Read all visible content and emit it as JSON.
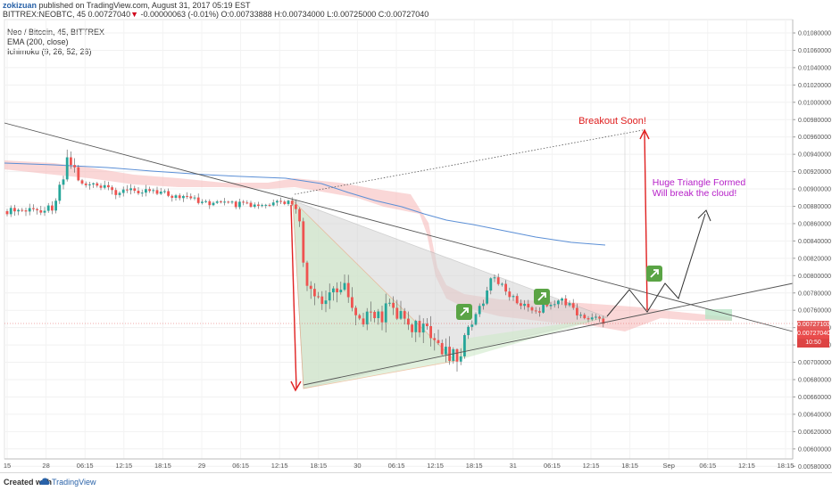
{
  "header": {
    "user": "zokizuan",
    "published": " published on TradingView.com, August 31, 2017 05:19 EST",
    "symbol_line": "BITTREX:NEOBTC, 45 0.00727040",
    "change_arrow": "▼",
    "change_text": " -0.00000063 (-0.01%) O:0.00733888 H:0.00734000 L:0.00725000 C:0.00727040"
  },
  "indicators": [
    "Neo / Bitcoin, 45, BITTREX",
    "EMA (200, close)",
    "Ichimoku (9, 26, 52, 26)"
  ],
  "annotations": {
    "breakout": "Breakout Soon!",
    "triangle_line1": "Huge Triangle Formed",
    "triangle_line2": "Will break the cloud!"
  },
  "price_tags": {
    "last": "0.00727040",
    "prev": "0.00727103",
    "timer": "10:50"
  },
  "footer": {
    "created": "Created with",
    "brand": "TradingView"
  },
  "colors": {
    "up": "#26a69a",
    "down": "#ef5350",
    "ema": "#5b8fd6",
    "cloud": "#f5b7b7",
    "cloud_green": "#b9e3c6",
    "triangle_gray": "#d4d4d4",
    "triangle_green": "#cfe9c9",
    "arrow_red": "#e02020",
    "annotation_purple": "#b620c8",
    "badge": "#5aa445"
  },
  "chart_data": {
    "type": "candlestick",
    "symbol": "BITTREX:NEOBTC",
    "interval": "45",
    "ylim": [
      0.00558,
      0.01089
    ],
    "y_ticks": [
      "0.01080000",
      "0.01060000",
      "0.01040000",
      "0.01020000",
      "0.01000000",
      "0.00980000",
      "0.00960000",
      "0.00940000",
      "0.00920000",
      "0.00900000",
      "0.00880000",
      "0.00860000",
      "0.00840000",
      "0.00820000",
      "0.00800000",
      "0.00780000",
      "0.00760000",
      "0.00740000",
      "0.00720000",
      "0.00700000",
      "0.00680000",
      "0.00660000",
      "0.00640000",
      "0.00620000",
      "0.00600000",
      "0.00580000"
    ],
    "x_ticks": [
      "15",
      "28",
      "06:15",
      "12:15",
      "18:15",
      "29",
      "06:15",
      "12:15",
      "18:15",
      "30",
      "06:15",
      "12:15",
      "18:15",
      "31",
      "06:15",
      "12:15",
      "18:15",
      "Sep",
      "06:15",
      "12:15",
      "18:15"
    ],
    "grid": true,
    "series": [
      {
        "name": "Neo / Bitcoin",
        "type": "candles"
      },
      {
        "name": "EMA (200, close)",
        "type": "line"
      },
      {
        "name": "Ichimoku (9, 26, 52, 26)",
        "type": "cloud"
      }
    ]
  }
}
